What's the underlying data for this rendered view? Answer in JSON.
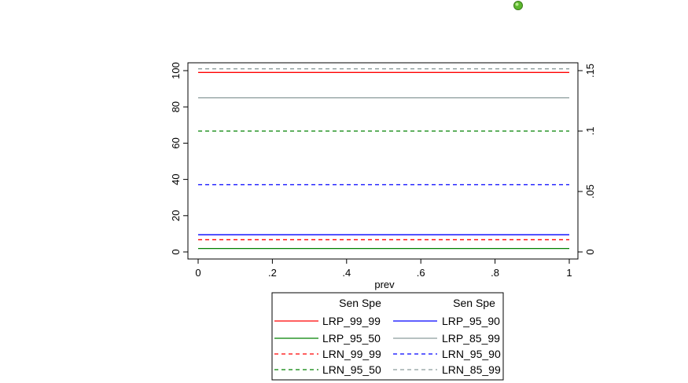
{
  "chart_data": {
    "type": "line",
    "xlabel": "prev",
    "x": [
      0,
      1
    ],
    "xlim": [
      0,
      1
    ],
    "xticks": [
      "0",
      ".2",
      ".4",
      ".6",
      ".8",
      "1"
    ],
    "ylim_left": [
      0,
      100
    ],
    "yticks_left": [
      "0",
      "20",
      "40",
      "60",
      "80",
      "100"
    ],
    "ylim_right": [
      0,
      0.15
    ],
    "yticks_right": [
      "0",
      ".05",
      ".1",
      ".15"
    ],
    "legend": {
      "placement": "bottom",
      "col_headers": [
        "Sen Spe",
        "Sen Spe"
      ]
    },
    "series": [
      {
        "name": "LRP_99_99",
        "axis": "left",
        "values": [
          99,
          99
        ],
        "color": "#ff0000",
        "dash": "solid"
      },
      {
        "name": "LRP_95_90",
        "axis": "left",
        "values": [
          9.5,
          9.5
        ],
        "color": "#0000ff",
        "dash": "solid"
      },
      {
        "name": "LRP_95_50",
        "axis": "left",
        "values": [
          1.9,
          1.9
        ],
        "color": "#008000",
        "dash": "solid"
      },
      {
        "name": "LRP_85_99",
        "axis": "left",
        "values": [
          85,
          85
        ],
        "color": "#8c9c9c",
        "dash": "solid"
      },
      {
        "name": "LRN_99_99",
        "axis": "right",
        "values": [
          0.0101,
          0.0101
        ],
        "color": "#ff0000",
        "dash": "dashed"
      },
      {
        "name": "LRN_95_90",
        "axis": "right",
        "values": [
          0.0556,
          0.0556
        ],
        "color": "#0000ff",
        "dash": "dashed"
      },
      {
        "name": "LRN_95_50",
        "axis": "right",
        "values": [
          0.1,
          0.1
        ],
        "color": "#008000",
        "dash": "dashed"
      },
      {
        "name": "LRN_85_99",
        "axis": "right",
        "values": [
          0.1515,
          0.1515
        ],
        "color": "#8c9c9c",
        "dash": "dashed"
      }
    ]
  }
}
